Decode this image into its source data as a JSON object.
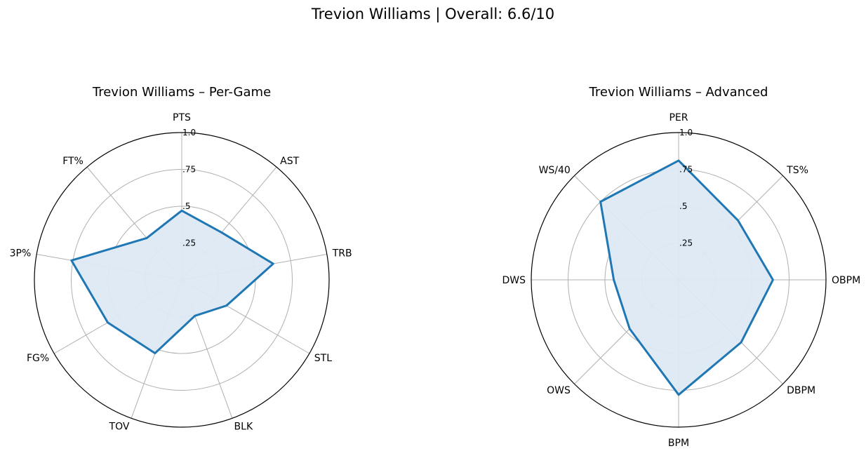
{
  "title": "Trevion Williams | Overall: 6.6/10",
  "colors": {
    "line": "#1f77b4",
    "fill": "#dde9f4",
    "grid": "#b0b0b0",
    "frame": "#000000"
  },
  "chart_data": [
    {
      "type": "radar",
      "title": "Trevion Williams – Per-Game",
      "categories": [
        "PTS",
        "AST",
        "TRB",
        "STL",
        "BLK",
        "TOV",
        "FG%",
        "3P%",
        "FT%"
      ],
      "values": [
        0.47,
        0.42,
        0.63,
        0.35,
        0.26,
        0.53,
        0.58,
        0.76,
        0.37
      ],
      "rlim": [
        0,
        1
      ],
      "rticks": [
        0.25,
        0.5,
        0.75,
        1.0
      ],
      "rtick_labels": [
        ".25",
        ".5",
        ".75",
        "1.0"
      ]
    },
    {
      "type": "radar",
      "title": "Trevion Williams – Advanced",
      "categories": [
        "PER",
        "TS%",
        "OBPM",
        "DBPM",
        "BPM",
        "OWS",
        "DWS",
        "WS/40"
      ],
      "values": [
        0.81,
        0.57,
        0.64,
        0.6,
        0.78,
        0.47,
        0.44,
        0.75
      ],
      "rlim": [
        0,
        1
      ],
      "rticks": [
        0.25,
        0.5,
        0.75,
        1.0
      ],
      "rtick_labels": [
        ".25",
        ".5",
        ".75",
        "1.0"
      ]
    }
  ]
}
